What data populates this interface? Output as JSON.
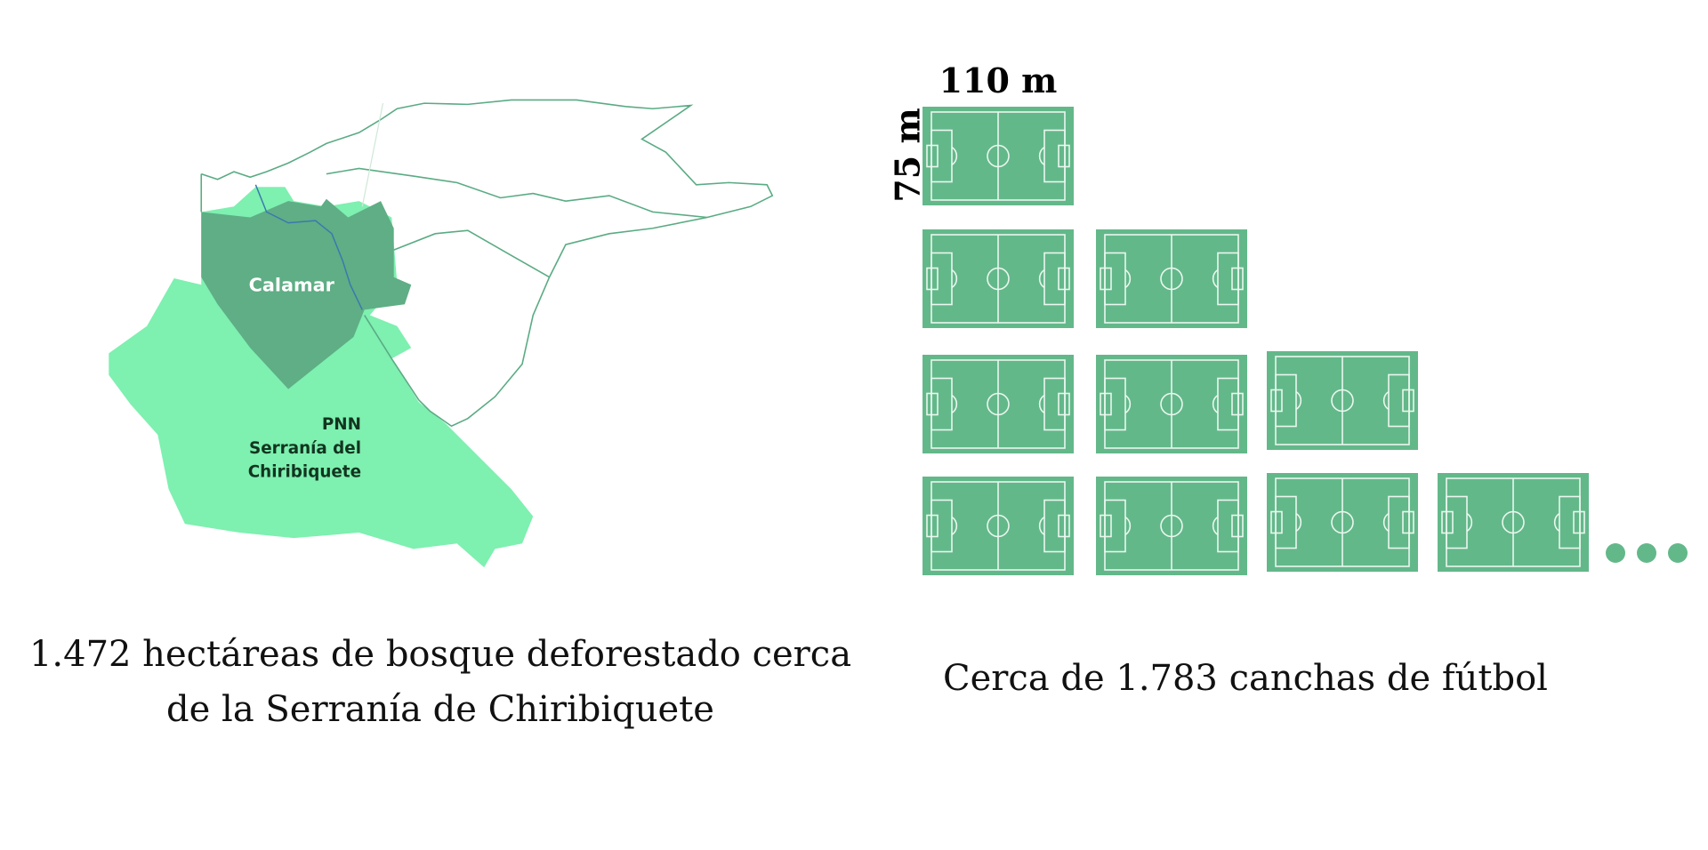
{
  "colors": {
    "park": "#7ef0b0",
    "calamar": "#5fae85",
    "border": "#5aab84",
    "river": "#3a78b0",
    "field": "#63b88a",
    "field_lines": "#eaf7ee",
    "text": "#111111"
  },
  "map": {
    "calamar_label": "Calamar",
    "park_label_lines": [
      "PNN",
      "Serranía del",
      "Chiribiquete"
    ]
  },
  "field_dimensions": {
    "width_label": "110 m",
    "height_label": "75 m"
  },
  "field_rows": [
    1,
    2,
    3,
    4
  ],
  "ellipsis_dots": 3,
  "captions": {
    "left_lines": [
      "1.472 hectáreas de bosque deforestado cerca",
      "de la Serranía de Chiribiquete"
    ],
    "right": "Cerca de 1.783 canchas de fútbol"
  }
}
